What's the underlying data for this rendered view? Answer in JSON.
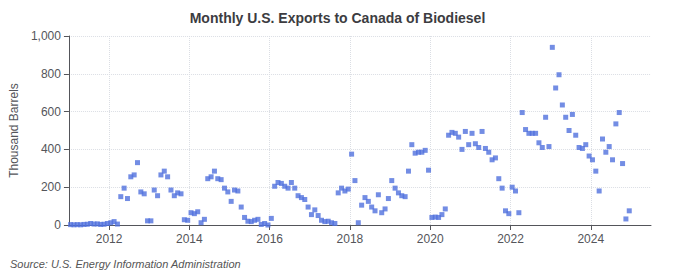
{
  "chart_data": {
    "type": "scatter",
    "title": "Monthly U.S. Exports to Canada of Biodiesel",
    "ylabel": "Thousand Barrels",
    "annotations": [
      "Source: U.S. Energy Information Administration"
    ],
    "marker": "square",
    "grid": true,
    "xlim": [
      2011.0,
      2025.5
    ],
    "xticks": [
      2012,
      2014,
      2016,
      2018,
      2020,
      2022,
      2024
    ],
    "ylim": [
      0,
      1000
    ],
    "yticks": [
      0,
      200,
      400,
      600,
      800,
      {
        "value": 1000,
        "label": "1,000"
      }
    ],
    "x": [
      2011.0416666666667,
      2011.125,
      2011.2083333333333,
      2011.2916666666667,
      2011.375,
      2011.4583333333333,
      2011.5416666666667,
      2011.625,
      2011.7083333333333,
      2011.7916666666667,
      2011.875,
      2011.9583333333333,
      2012.0416666666667,
      2012.125,
      2012.2083333333333,
      2012.2916666666667,
      2012.375,
      2012.4583333333333,
      2012.5416666666667,
      2012.625,
      2012.7083333333333,
      2012.7916666666667,
      2012.875,
      2012.9583333333333,
      2013.0416666666667,
      2013.125,
      2013.2083333333333,
      2013.2916666666667,
      2013.375,
      2013.4583333333333,
      2013.5416666666667,
      2013.625,
      2013.7083333333333,
      2013.7916666666667,
      2013.875,
      2013.9583333333333,
      2014.0416666666667,
      2014.125,
      2014.2083333333333,
      2014.2916666666667,
      2014.375,
      2014.4583333333333,
      2014.5416666666667,
      2014.625,
      2014.7083333333333,
      2014.7916666666667,
      2014.875,
      2014.9583333333333,
      2015.0416666666667,
      2015.125,
      2015.2083333333333,
      2015.2916666666667,
      2015.375,
      2015.4583333333333,
      2015.5416666666667,
      2015.625,
      2015.7083333333333,
      2015.7916666666667,
      2015.875,
      2015.9583333333333,
      2016.0416666666667,
      2016.125,
      2016.2083333333333,
      2016.2916666666667,
      2016.375,
      2016.4583333333333,
      2016.5416666666667,
      2016.625,
      2016.7083333333333,
      2016.7916666666667,
      2016.875,
      2016.9583333333333,
      2017.0416666666667,
      2017.125,
      2017.2083333333333,
      2017.2916666666667,
      2017.375,
      2017.4583333333333,
      2017.5416666666667,
      2017.625,
      2017.7083333333333,
      2017.7916666666667,
      2017.875,
      2017.9583333333333,
      2018.0416666666667,
      2018.125,
      2018.2083333333333,
      2018.2916666666667,
      2018.375,
      2018.4583333333333,
      2018.5416666666667,
      2018.625,
      2018.7083333333333,
      2018.7916666666667,
      2018.875,
      2018.9583333333333,
      2019.0416666666667,
      2019.125,
      2019.2083333333333,
      2019.2916666666667,
      2019.375,
      2019.4583333333333,
      2019.5416666666667,
      2019.625,
      2019.7083333333333,
      2019.7916666666667,
      2019.875,
      2019.9583333333333,
      2020.0416666666667,
      2020.125,
      2020.2083333333333,
      2020.2916666666667,
      2020.375,
      2020.4583333333333,
      2020.5416666666667,
      2020.625,
      2020.7083333333333,
      2020.7916666666667,
      2020.875,
      2020.9583333333333,
      2021.0416666666667,
      2021.125,
      2021.2083333333333,
      2021.2916666666667,
      2021.375,
      2021.4583333333333,
      2021.5416666666667,
      2021.625,
      2021.7083333333333,
      2021.7916666666667,
      2021.875,
      2021.9583333333333,
      2022.0416666666667,
      2022.125,
      2022.2083333333333,
      2022.2916666666667,
      2022.375,
      2022.4583333333333,
      2022.5416666666667,
      2022.625,
      2022.7083333333333,
      2022.7916666666667,
      2022.875,
      2022.9583333333333,
      2023.0416666666667,
      2023.125,
      2023.2083333333333,
      2023.2916666666667,
      2023.375,
      2023.4583333333333,
      2023.5416666666667,
      2023.625,
      2023.7083333333333,
      2023.7916666666667,
      2023.875,
      2023.9583333333333,
      2024.0416666666667,
      2024.125,
      2024.2083333333333,
      2024.2916666666667,
      2024.375,
      2024.4583333333333,
      2024.5416666666667,
      2024.625,
      2024.7083333333333,
      2024.7916666666667,
      2024.875,
      2024.9583333333333
    ],
    "values": [
      2,
      1,
      2,
      1,
      3,
      4,
      8,
      5,
      6,
      3,
      4,
      8,
      12,
      18,
      5,
      150,
      195,
      140,
      255,
      265,
      330,
      175,
      165,
      22,
      22,
      185,
      155,
      265,
      285,
      255,
      185,
      155,
      170,
      165,
      28,
      25,
      65,
      60,
      70,
      12,
      30,
      245,
      255,
      285,
      245,
      240,
      195,
      175,
      125,
      185,
      180,
      95,
      40,
      20,
      18,
      25,
      30,
      3,
      8,
      0,
      35,
      205,
      225,
      220,
      205,
      195,
      225,
      195,
      155,
      145,
      135,
      95,
      55,
      80,
      50,
      25,
      18,
      20,
      12,
      8,
      170,
      195,
      180,
      190,
      375,
      235,
      12,
      105,
      145,
      125,
      95,
      75,
      160,
      65,
      85,
      140,
      235,
      195,
      170,
      155,
      150,
      285,
      425,
      380,
      385,
      385,
      395,
      290,
      40,
      42,
      40,
      55,
      85,
      475,
      490,
      485,
      465,
      400,
      495,
      425,
      485,
      430,
      410,
      495,
      405,
      385,
      345,
      355,
      245,
      195,
      75,
      60,
      200,
      180,
      65,
      595,
      505,
      485,
      485,
      485,
      435,
      410,
      570,
      415,
      940,
      725,
      795,
      635,
      570,
      500,
      585,
      475,
      410,
      405,
      425,
      365,
      345,
      285,
      180,
      455,
      385,
      415,
      345,
      535,
      595,
      325,
      32,
      75
    ]
  }
}
